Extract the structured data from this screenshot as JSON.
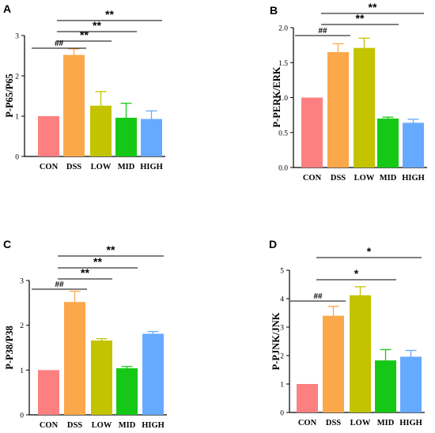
{
  "colors": [
    "#fc8080",
    "#fba84a",
    "#c3c300",
    "#16c816",
    "#66aaff"
  ],
  "chart_data": [
    {
      "panel": "A",
      "type": "bar",
      "ylabel": "P-P65/P65",
      "categories": [
        "CON",
        "DSS",
        "LOW",
        "MID",
        "HIGH"
      ],
      "values": [
        1.0,
        2.52,
        1.26,
        0.96,
        0.93
      ],
      "errors": [
        0,
        0.15,
        0.35,
        0.36,
        0.2
      ],
      "ylim": [
        0,
        3
      ],
      "yticks": [
        "0",
        "1",
        "2",
        "3"
      ],
      "significance": [
        {
          "from": 0,
          "to": 1,
          "label": "##"
        },
        {
          "from": 1,
          "to": 2,
          "label": "**"
        },
        {
          "from": 1,
          "to": 3,
          "label": "**"
        },
        {
          "from": 1,
          "to": 4,
          "label": "**"
        }
      ]
    },
    {
      "panel": "B",
      "type": "bar",
      "ylabel": "P-PERK/ERK",
      "categories": [
        "CON",
        "DSS",
        "LOW",
        "MID",
        "HIGH"
      ],
      "values": [
        1.0,
        1.65,
        1.71,
        0.7,
        0.64
      ],
      "errors": [
        0,
        0.12,
        0.14,
        0.02,
        0.05
      ],
      "ylim": [
        0,
        2
      ],
      "yticks": [
        "0.0",
        "0.5",
        "1.0",
        "1.5",
        "2.0"
      ],
      "significance": [
        {
          "from": 0,
          "to": 1,
          "label": "##"
        },
        {
          "from": 1,
          "to": 3,
          "label": "**"
        },
        {
          "from": 1,
          "to": 4,
          "label": "**"
        }
      ]
    },
    {
      "panel": "C",
      "type": "bar",
      "ylabel": "P-P38/P38",
      "categories": [
        "CON",
        "DSS",
        "LOW",
        "MID",
        "HIGH"
      ],
      "values": [
        1.0,
        2.52,
        1.66,
        1.04,
        1.81
      ],
      "errors": [
        0,
        0.24,
        0.04,
        0.04,
        0.05
      ],
      "ylim": [
        0,
        3
      ],
      "yticks": [
        "0",
        "1",
        "2",
        "3"
      ],
      "significance": [
        {
          "from": 0,
          "to": 1,
          "label": "##"
        },
        {
          "from": 1,
          "to": 2,
          "label": "**"
        },
        {
          "from": 1,
          "to": 3,
          "label": "**"
        },
        {
          "from": 1,
          "to": 4,
          "label": "**"
        }
      ]
    },
    {
      "panel": "D",
      "type": "bar",
      "ylabel": "P-PJNK/JNK",
      "categories": [
        "CON",
        "DSS",
        "LOW",
        "MID",
        "HIGH"
      ],
      "values": [
        1.0,
        3.4,
        4.12,
        1.83,
        1.96
      ],
      "errors": [
        0,
        0.33,
        0.3,
        0.38,
        0.22
      ],
      "ylim": [
        0,
        5
      ],
      "yticks": [
        "0",
        "1",
        "2",
        "3",
        "4",
        "5"
      ],
      "significance": [
        {
          "from": 0,
          "to": 1,
          "label": "##"
        },
        {
          "from": 1,
          "to": 3,
          "label": "*"
        },
        {
          "from": 1,
          "to": 4,
          "label": "*"
        }
      ]
    }
  ]
}
